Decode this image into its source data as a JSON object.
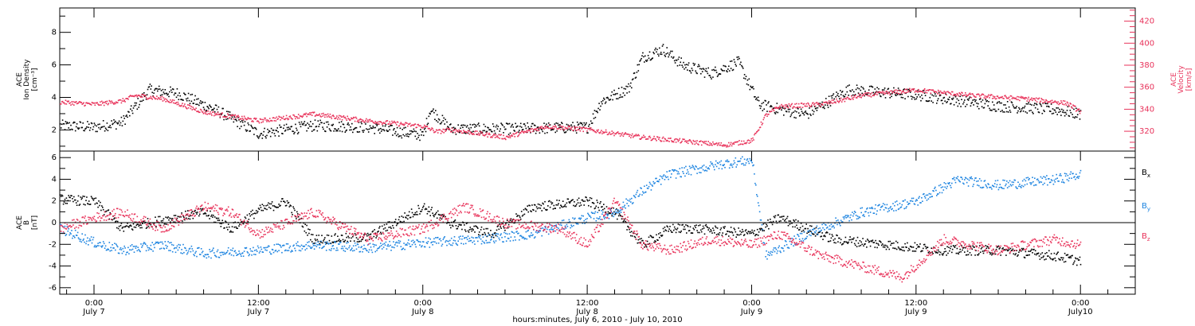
{
  "chart_data": [
    {
      "type": "scatter",
      "panel": "top",
      "ylabel": [
        "ACE",
        "Ion Density",
        "[cm⁻³]"
      ],
      "ylabel_right": [
        "ACE",
        "Velocity",
        "[km/s]"
      ],
      "ylim": [
        0.7,
        9.5
      ],
      "yticks": [
        2,
        4,
        6,
        8
      ],
      "ylim_right": [
        302,
        432
      ],
      "yticks_right": [
        320,
        340,
        360,
        380,
        400,
        420
      ],
      "x_hours_range": [
        -2.5,
        76
      ],
      "series": [
        {
          "axis": "left",
          "color": "#000000",
          "key": [
            [
              -2.5,
              2.3
            ],
            [
              0,
              2.2
            ],
            [
              2,
              2.5
            ],
            [
              4,
              4.5
            ],
            [
              6,
              4.3
            ],
            [
              9,
              3.2
            ],
            [
              12,
              1.8
            ],
            [
              16,
              2.3
            ],
            [
              20,
              2.2
            ],
            [
              24,
              1.7
            ],
            [
              24.5,
              3.3
            ],
            [
              26,
              2.1
            ],
            [
              30,
              2.1
            ],
            [
              36,
              2.2
            ],
            [
              37,
              3.8
            ],
            [
              39,
              4.6
            ],
            [
              40,
              6.5
            ],
            [
              41.5,
              7.0
            ],
            [
              43,
              6.0
            ],
            [
              45,
              5.5
            ],
            [
              47,
              6.2
            ],
            [
              48.5,
              3.6
            ],
            [
              50,
              3.3
            ],
            [
              52,
              3.0
            ],
            [
              55,
              4.5
            ],
            [
              60,
              4.2
            ],
            [
              66,
              3.5
            ],
            [
              70,
              3.3
            ],
            [
              72,
              3.0
            ]
          ]
        },
        {
          "axis": "right",
          "color": "#e8325a",
          "key": [
            [
              -2.5,
              347
            ],
            [
              0,
              345
            ],
            [
              2,
              348
            ],
            [
              3,
              353
            ],
            [
              5,
              350
            ],
            [
              8,
              338
            ],
            [
              12,
              330
            ],
            [
              16,
              336
            ],
            [
              20,
              330
            ],
            [
              24,
              325
            ],
            [
              25,
              320
            ],
            [
              26,
              322
            ],
            [
              30,
              315
            ],
            [
              33,
              325
            ],
            [
              36,
              322
            ],
            [
              40,
              315
            ],
            [
              46,
              308
            ],
            [
              48,
              312
            ],
            [
              49,
              335
            ],
            [
              50,
              343
            ],
            [
              53,
              345
            ],
            [
              55,
              350
            ],
            [
              56,
              353
            ],
            [
              60,
              358
            ],
            [
              64,
              353
            ],
            [
              68,
              350
            ],
            [
              71,
              346
            ],
            [
              72,
              338
            ]
          ]
        }
      ]
    },
    {
      "type": "scatter",
      "panel": "bottom",
      "ylabel": [
        "ACE",
        "B",
        "[nT]"
      ],
      "ylim": [
        -6.6,
        6.6
      ],
      "yticks": [
        -6,
        -4,
        -2,
        0,
        2,
        4,
        6
      ],
      "x_hours_range": [
        -2.5,
        76
      ],
      "series": [
        {
          "name": "Bx",
          "color": "#000000",
          "key": [
            [
              -2.5,
              2.2
            ],
            [
              0,
              2.0
            ],
            [
              1,
              0.8
            ],
            [
              2,
              -0.5
            ],
            [
              5,
              0.3
            ],
            [
              8,
              1.0
            ],
            [
              10,
              -0.5
            ],
            [
              12,
              1.2
            ],
            [
              14,
              2.0
            ],
            [
              16,
              -1.5
            ],
            [
              20,
              -1.3
            ],
            [
              24,
              1.5
            ],
            [
              26,
              0.0
            ],
            [
              29,
              -1.0
            ],
            [
              32,
              1.5
            ],
            [
              36,
              2.0
            ],
            [
              38,
              1.0
            ],
            [
              40,
              -2.0
            ],
            [
              42,
              -0.5
            ],
            [
              44,
              -0.5
            ],
            [
              48,
              -1.0
            ],
            [
              50,
              0.5
            ],
            [
              54,
              -1.5
            ],
            [
              58,
              -2.0
            ],
            [
              62,
              -2.5
            ],
            [
              66,
              -2.5
            ],
            [
              70,
              -3.0
            ],
            [
              72,
              -3.5
            ]
          ]
        },
        {
          "name": "By",
          "color": "#1d84e0",
          "key": [
            [
              -2.5,
              -0.5
            ],
            [
              0,
              -1.8
            ],
            [
              2,
              -2.5
            ],
            [
              5,
              -2.0
            ],
            [
              8,
              -2.8
            ],
            [
              12,
              -2.5
            ],
            [
              16,
              -2.0
            ],
            [
              20,
              -2.3
            ],
            [
              24,
              -1.8
            ],
            [
              28,
              -1.5
            ],
            [
              32,
              -1.0
            ],
            [
              36,
              0.5
            ],
            [
              38,
              1.0
            ],
            [
              40,
              3.0
            ],
            [
              42,
              4.5
            ],
            [
              44,
              5.0
            ],
            [
              46,
              5.5
            ],
            [
              48,
              5.8
            ],
            [
              49,
              -3.0
            ],
            [
              52,
              -1.0
            ],
            [
              56,
              1.0
            ],
            [
              60,
              2.0
            ],
            [
              63,
              4.0
            ],
            [
              66,
              3.5
            ],
            [
              70,
              4.0
            ],
            [
              72,
              4.5
            ]
          ]
        },
        {
          "name": "Bz",
          "color": "#e8325a",
          "key": [
            [
              -2.5,
              -0.5
            ],
            [
              0,
              0.5
            ],
            [
              2,
              1.0
            ],
            [
              5,
              -0.5
            ],
            [
              8,
              1.5
            ],
            [
              10,
              1.0
            ],
            [
              12,
              -1.0
            ],
            [
              16,
              1.0
            ],
            [
              20,
              -1.5
            ],
            [
              24,
              -0.5
            ],
            [
              27,
              1.5
            ],
            [
              30,
              0.0
            ],
            [
              34,
              -0.5
            ],
            [
              36,
              -2.0
            ],
            [
              38,
              2.0
            ],
            [
              40,
              -2.0
            ],
            [
              42,
              -2.5
            ],
            [
              45,
              -1.5
            ],
            [
              48,
              -2.0
            ],
            [
              50,
              -1.0
            ],
            [
              53,
              -3.0
            ],
            [
              56,
              -4.0
            ],
            [
              59,
              -5.0
            ],
            [
              62,
              -1.5
            ],
            [
              66,
              -2.5
            ],
            [
              70,
              -1.5
            ],
            [
              72,
              -2.0
            ]
          ]
        }
      ]
    }
  ],
  "x_axis": {
    "label": "hours:minutes, July  6, 2010 - July 10, 2010",
    "ticks": [
      {
        "hours": 0,
        "time": "0:00",
        "day": "July 7"
      },
      {
        "hours": 12,
        "time": "12:00",
        "day": "July 7"
      },
      {
        "hours": 24,
        "time": "0:00",
        "day": "July 8"
      },
      {
        "hours": 36,
        "time": "12:00",
        "day": "July 8"
      },
      {
        "hours": 48,
        "time": "0:00",
        "day": "July 9"
      },
      {
        "hours": 60,
        "time": "12:00",
        "day": "July 9"
      },
      {
        "hours": 72,
        "time": "0:00",
        "day": "July10"
      }
    ]
  },
  "legend": {
    "items": [
      {
        "main": "B",
        "sub": "x",
        "color": "#000000"
      },
      {
        "main": "B",
        "sub": "y",
        "color": "#1d84e0"
      },
      {
        "main": "B",
        "sub": "z",
        "color": "#e8325a"
      }
    ]
  }
}
